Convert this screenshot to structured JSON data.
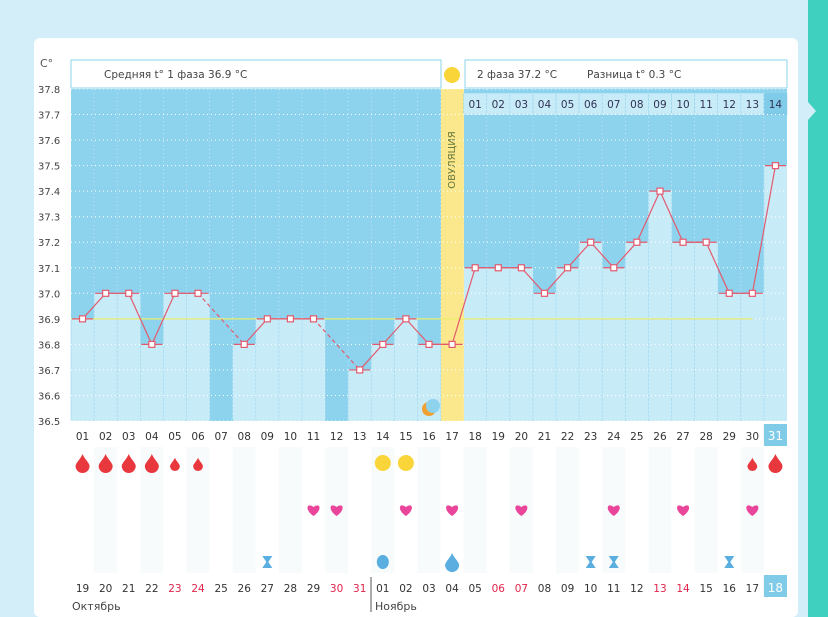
{
  "colors": {
    "chart_bg": "#8ed3ee",
    "bar_fill": "#c8ebf8",
    "line": "#e35a6d",
    "ovulation": "#fbe78c",
    "drop_red": "#e8373d",
    "heart": "#e8459b",
    "coverline": "#e9ed6a",
    "teal": "#3fd0bf",
    "highlight_cell": "#7fcbe8"
  },
  "header": {
    "phase1": "Средняя t° 1 фаза 36.9 °С",
    "phase2": "2 фаза 37.2 °С",
    "difference": "Разница t° 0.3 °С"
  },
  "ovulation_label": "ОВУЛЯЦИЯ",
  "coverline_value": 36.9,
  "months": {
    "first": "Октябрь",
    "second": "Ноябрь"
  },
  "chart_data": {
    "type": "line",
    "ylabel": "C°",
    "ylim": [
      36.5,
      37.8
    ],
    "yticks": [
      "37.8",
      "37.7",
      "37.6",
      "37.5",
      "37.4",
      "37.3",
      "37.2",
      "37.1",
      "37.0",
      "36.9",
      "36.8",
      "36.7",
      "36.6",
      "36.5"
    ],
    "cycle_days": [
      "01",
      "02",
      "03",
      "04",
      "05",
      "06",
      "07",
      "08",
      "09",
      "10",
      "11",
      "12",
      "13",
      "14",
      "15",
      "16",
      "17",
      "18",
      "19",
      "20",
      "21",
      "22",
      "23",
      "24",
      "25",
      "26",
      "27",
      "28",
      "29",
      "30",
      "31"
    ],
    "temperatures": [
      36.9,
      37.0,
      37.0,
      36.8,
      37.0,
      37.0,
      null,
      36.8,
      36.9,
      36.9,
      36.9,
      null,
      36.7,
      36.8,
      36.9,
      36.8,
      36.8,
      37.1,
      37.1,
      37.1,
      37.0,
      37.1,
      37.2,
      37.1,
      37.2,
      37.4,
      37.2,
      37.2,
      37.0,
      37.0,
      37.5
    ],
    "dashed_segments": [
      [
        6,
        8
      ],
      [
        11,
        13
      ]
    ],
    "ovulation_day": "17",
    "luteal_days": [
      "01",
      "02",
      "03",
      "04",
      "05",
      "06",
      "07",
      "08",
      "09",
      "10",
      "11",
      "12",
      "13",
      "14"
    ],
    "calendar_dates": [
      "19",
      "20",
      "21",
      "22",
      "23",
      "24",
      "25",
      "26",
      "27",
      "28",
      "29",
      "30",
      "31",
      "01",
      "02",
      "03",
      "04",
      "05",
      "06",
      "07",
      "08",
      "09",
      "10",
      "11",
      "12",
      "13",
      "14",
      "15",
      "16",
      "17",
      "18"
    ],
    "weekend_dates": [
      "23",
      "24",
      "30",
      "31",
      "06",
      "07",
      "13",
      "14"
    ],
    "highlighted_date": "18",
    "menstruation_days": {
      "large": [
        1,
        2,
        3,
        4,
        31
      ],
      "small": [
        5,
        6,
        30
      ]
    },
    "intercourse_days": [
      11,
      12,
      15,
      17,
      20,
      24,
      27,
      30
    ],
    "sun_days": [
      14,
      15
    ],
    "moon_day": 16,
    "cervical_fluid_days": [
      14,
      17
    ],
    "test_days": [
      9,
      23,
      24,
      29
    ]
  }
}
